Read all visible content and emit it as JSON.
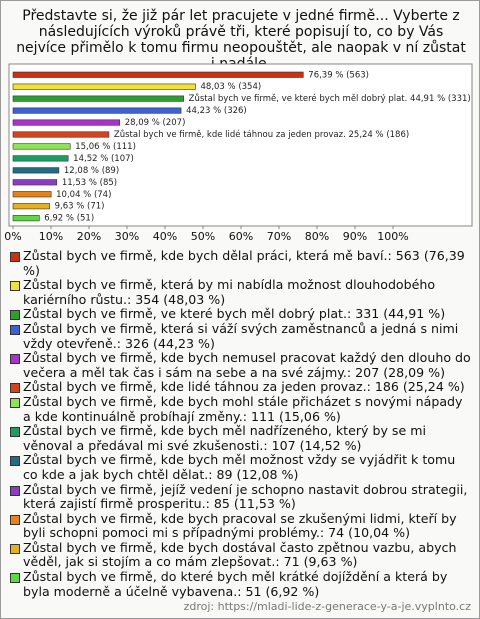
{
  "chart_data": {
    "type": "bar",
    "orientation": "horizontal",
    "title": "Představte si, že již pár let pracujete v jedné firmě... Vyberte z následujících výroků právě tři, které popisují to, co by Vás nejvíce přimělo k tomu firmu neopouštět, ale naopak v ní zůstat i nadále.",
    "values": [
      76.39,
      48.03,
      44.91,
      44.23,
      28.09,
      25.24,
      15.06,
      14.52,
      12.08,
      11.53,
      10.04,
      9.63,
      6.92
    ],
    "value_labels": [
      "76,39 % (563)",
      "48,03 % (354)",
      "Zůstal bych ve firmě, ve které bych měl dobrý plat. 44,91 % (331)",
      "44,23 % (326)",
      "28,09 % (207)",
      "Zůstal bych ve firmě, kde lidé táhnou za jeden provaz. 25,24 % (186)",
      "15,06 % (111)",
      "14,52 % (107)",
      "12,08 % (89)",
      "11,53 % (85)",
      "10,04 % (74)",
      "9,63 % (71)",
      "6,92 % (51)"
    ],
    "colors": [
      "#c63117",
      "#f2e13a",
      "#2f9e32",
      "#3b62cf",
      "#a535c4",
      "#d2431f",
      "#8fe35a",
      "#1f9c62",
      "#226c84",
      "#8a3fc2",
      "#e5831d",
      "#e2b220",
      "#5fd843"
    ],
    "legend_labels": [
      "Zůstal bych ve firmě, kde bych dělal práci, která mě baví.: 563 (76,39 %)",
      "Zůstal bych ve firmě, která by mi nabídla možnost dlouhodobého kariérního růstu.: 354 (48,03 %)",
      "Zůstal bych ve firmě, ve které bych měl dobrý plat.: 331 (44,91 %)",
      "Zůstal bych ve firmě, která si váží svých zaměstnanců a jedná s nimi vždy otevřeně.: 326 (44,23 %)",
      "Zůstal bych ve firmě, kde bych nemusel pracovat každý den dlouho do večera a měl tak čas i sám na sebe a na své zájmy.: 207 (28,09 %)",
      "Zůstal bych ve firmě, kde lidé táhnou za jeden provaz.: 186 (25,24 %)",
      "Zůstal bych ve firmě, kde bych mohl stále přicházet s novými nápady a kde kontinuálně probíhají změny.: 111 (15,06 %)",
      "Zůstal bych ve firmě, kde bych měl nadřízeného, který by se mi věnoval a předával mi své zkušenosti.: 107 (14,52 %)",
      "Zůstal bych ve firmě, kde bych měl možnost vždy se vyjádřit k tomu co kde a jak bych chtěl dělat.: 89 (12,08 %)",
      "Zůstal bych ve firmě, jejíž vedení je schopno nastavit dobrou strategii, která zajistí firmě prosperitu.: 85 (11,53 %)",
      "Zůstal bych ve firmě, kde bych pracoval se zkušenými lidmi, kteří by byli schopni pomoci mi s případnými problémy.: 74 (10,04 %)",
      "Zůstal bych ve firmě, kde bych dostával často zpětnou vazbu, abych věděl, jak si stojím a co mám zlepšovat.: 71 (9,63 %)",
      "Zůstal bych ve firmě, do které bych měl krátké dojíždění a která by byla moderně a účelně vybavena.: 51 (6,92 %)"
    ],
    "xlim": [
      0,
      100
    ],
    "xticks": [
      {
        "value": 0,
        "label": "0%"
      },
      {
        "value": 10,
        "label": "10%"
      },
      {
        "value": 20,
        "label": "20%"
      },
      {
        "value": 30,
        "label": "30%"
      },
      {
        "value": 40,
        "label": "40%"
      },
      {
        "value": 50,
        "label": "50%"
      },
      {
        "value": 60,
        "label": "60%"
      },
      {
        "value": 70,
        "label": "70%"
      },
      {
        "value": 80,
        "label": "80%"
      },
      {
        "value": 90,
        "label": "90%"
      },
      {
        "value": 100,
        "label": "100%"
      }
    ],
    "source": "zdroj: https://mladi-lide-z-generace-y-a-je.vyplnto.cz"
  }
}
